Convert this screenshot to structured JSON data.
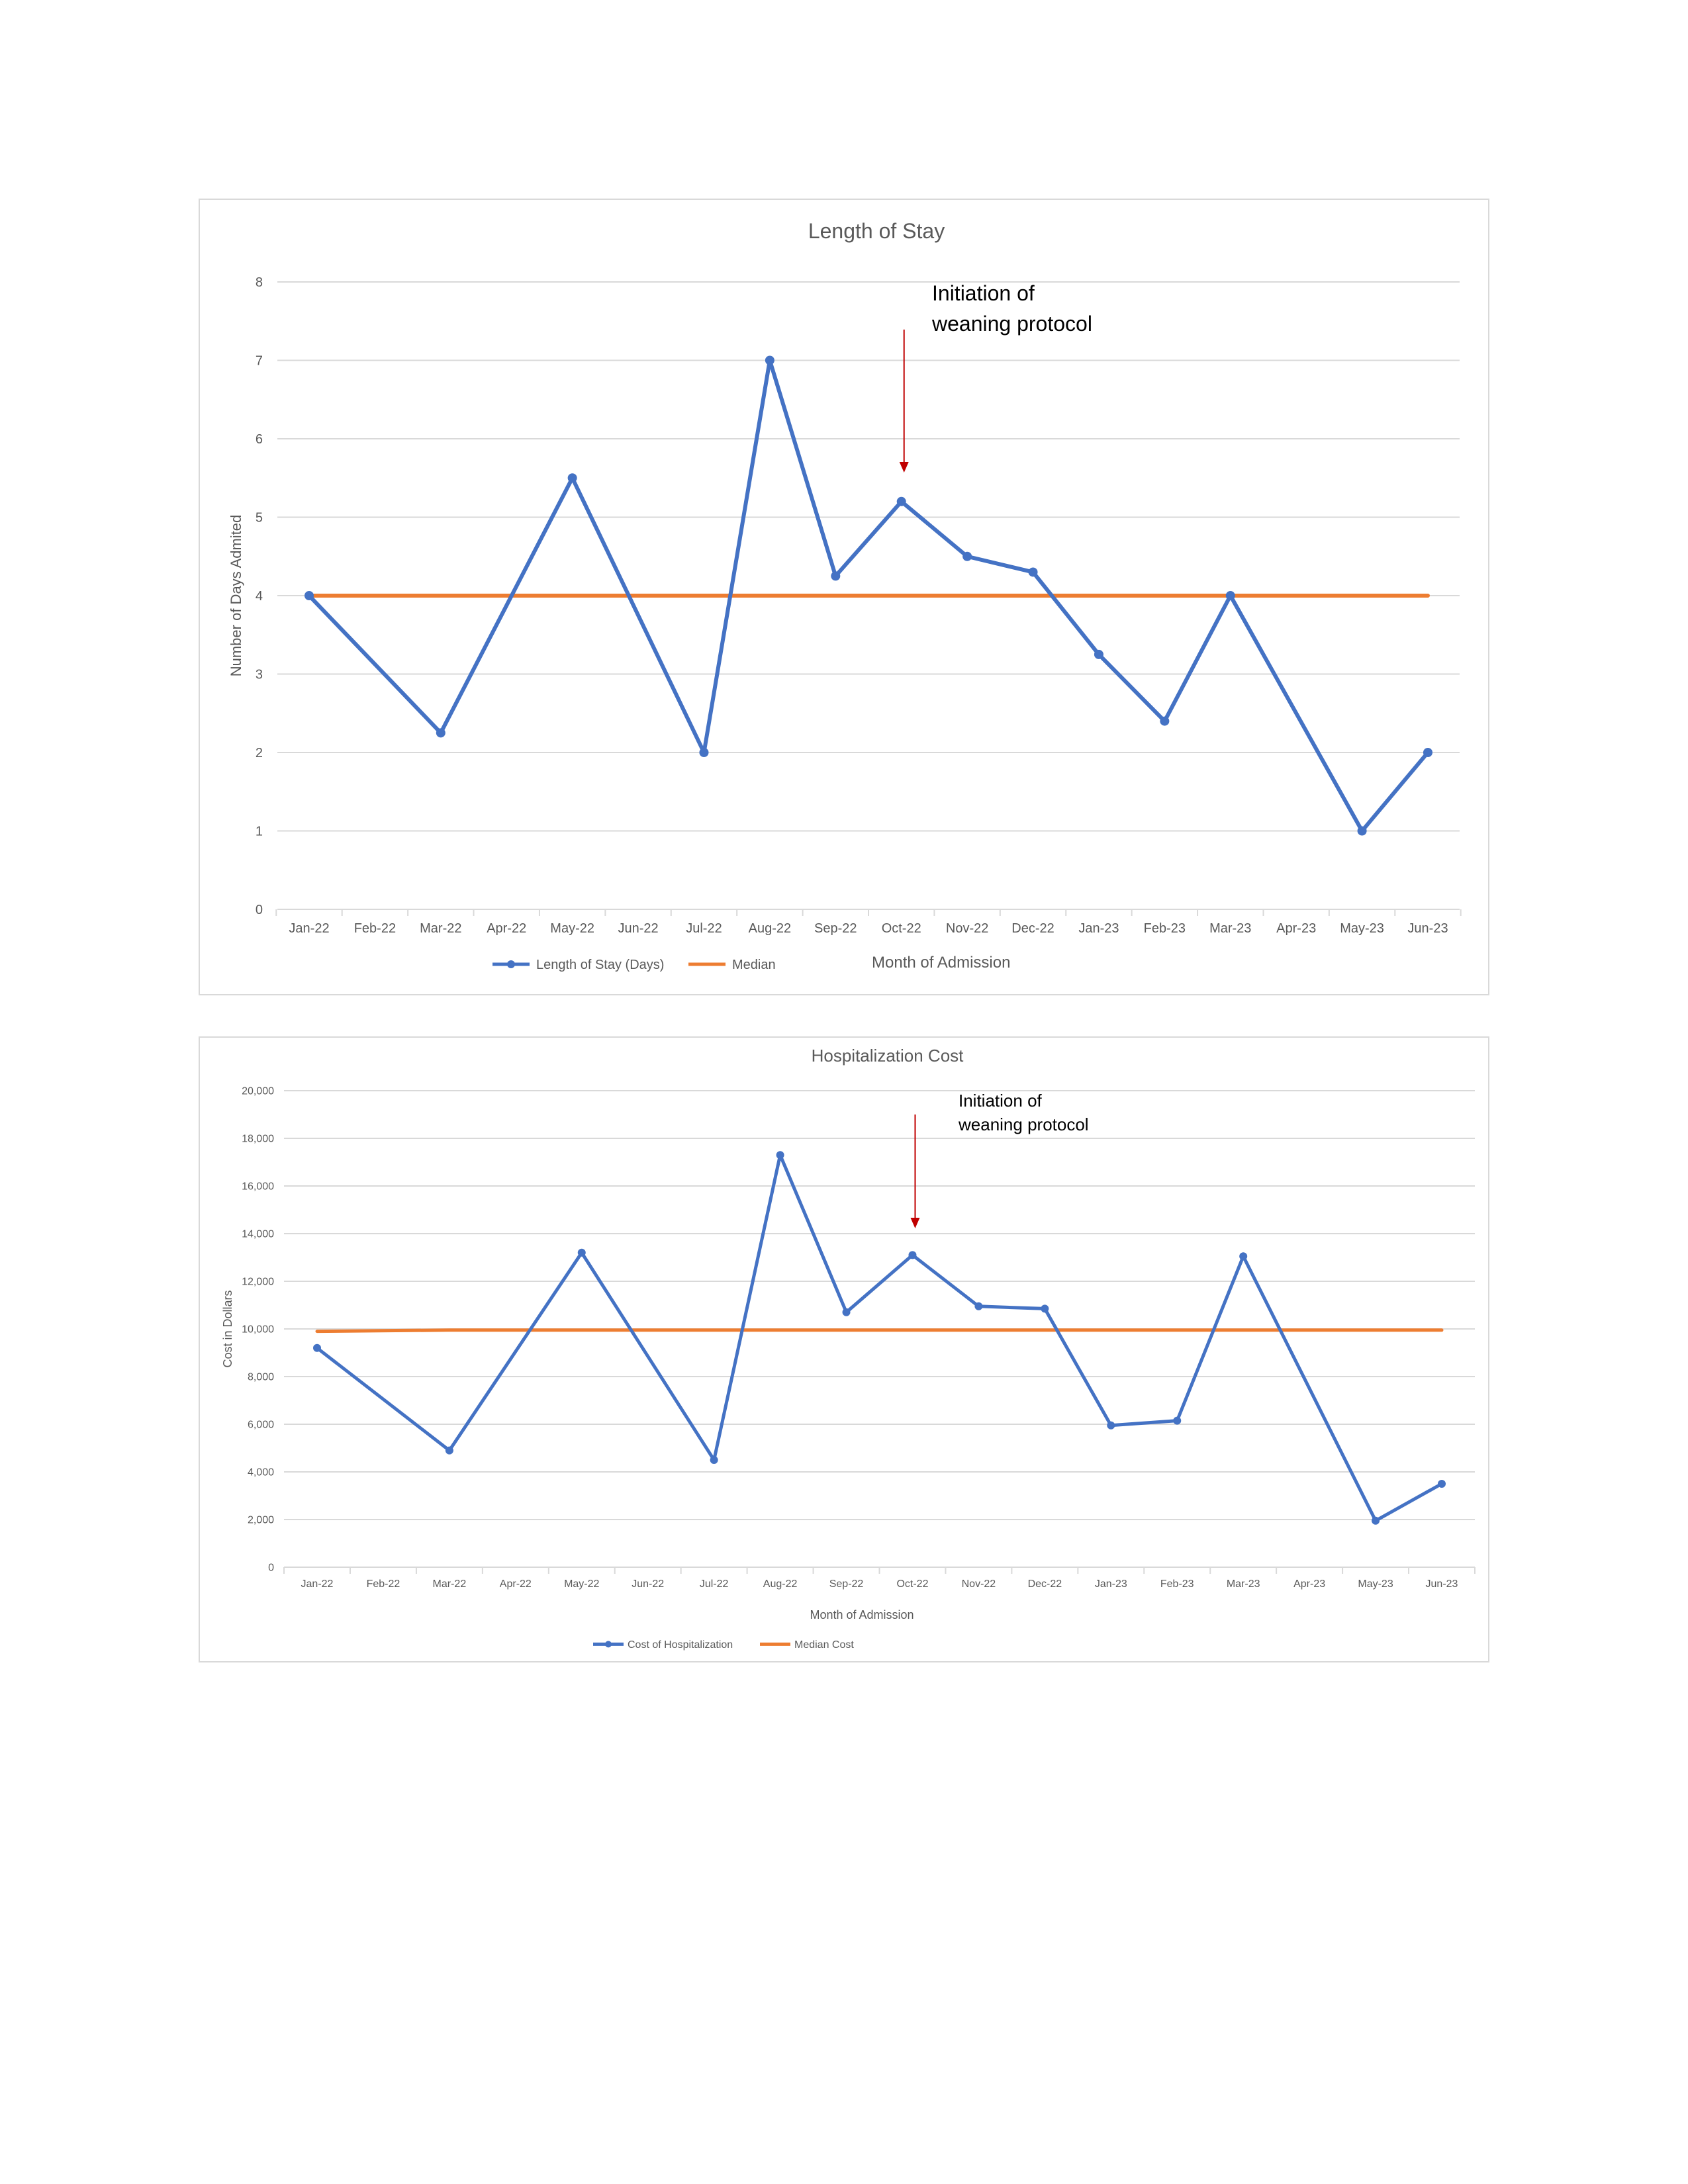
{
  "chart_data": [
    {
      "type": "line",
      "title": "Length of Stay",
      "xlabel": "Month of Admission",
      "ylabel": "Number of Days Admited",
      "ylim": [
        0,
        8
      ],
      "yticks": [
        "0",
        "1",
        "2",
        "3",
        "4",
        "5",
        "6",
        "7",
        "8"
      ],
      "categories": [
        "Jan-22",
        "Feb-22",
        "Mar-22",
        "Apr-22",
        "May-22",
        "Jun-22",
        "Jul-22",
        "Aug-22",
        "Sep-22",
        "Oct-22",
        "Nov-22",
        "Dec-22",
        "Jan-23",
        "Feb-23",
        "Mar-23",
        "Apr-23",
        "May-23",
        "Jun-23"
      ],
      "grid": true,
      "legend": "bottom",
      "series": [
        {
          "name": "Length of Stay (Days)",
          "color": "#4472C4",
          "markers": true,
          "points": [
            {
              "x": "Jan-22",
              "y": 4.0
            },
            {
              "x": "Mar-22",
              "y": 2.25
            },
            {
              "x": "May-22",
              "y": 5.5
            },
            {
              "x": "Jul-22",
              "y": 2.0
            },
            {
              "x": "Aug-22",
              "y": 7.0
            },
            {
              "x": "Sep-22",
              "y": 4.25
            },
            {
              "x": "Oct-22",
              "y": 5.2
            },
            {
              "x": "Nov-22",
              "y": 4.5
            },
            {
              "x": "Dec-22",
              "y": 4.3
            },
            {
              "x": "Jan-23",
              "y": 3.25
            },
            {
              "x": "Feb-23",
              "y": 2.4
            },
            {
              "x": "Mar-23",
              "y": 4.0
            },
            {
              "x": "May-23",
              "y": 1.0
            },
            {
              "x": "Jun-23",
              "y": 2.0
            }
          ]
        },
        {
          "name": "Median",
          "color": "#ED7D31",
          "markers": false,
          "points": [
            {
              "x": "Jan-22",
              "y": 4
            },
            {
              "x": "Jun-23",
              "y": 4
            }
          ]
        }
      ],
      "annotation": {
        "lines": [
          "Initiation of",
          "weaning protocol"
        ],
        "month": "Oct-22",
        "color": "#C00000"
      }
    },
    {
      "type": "line",
      "title": "Hospitalization Cost",
      "xlabel": "Month of Admission",
      "ylabel": "Cost in Dollars",
      "ylim": [
        0,
        20000
      ],
      "yticks": [
        "0",
        "2,000",
        "4,000",
        "6,000",
        "8,000",
        "10,000",
        "12,000",
        "14,000",
        "16,000",
        "18,000",
        "20,000"
      ],
      "categories": [
        "Jan-22",
        "Feb-22",
        "Mar-22",
        "Apr-22",
        "May-22",
        "Jun-22",
        "Jul-22",
        "Aug-22",
        "Sep-22",
        "Oct-22",
        "Nov-22",
        "Dec-22",
        "Jan-23",
        "Feb-23",
        "Mar-23",
        "Apr-23",
        "May-23",
        "Jun-23"
      ],
      "grid": true,
      "legend": "bottom",
      "series": [
        {
          "name": "Cost of Hospitalization",
          "color": "#4472C4",
          "markers": true,
          "points": [
            {
              "x": "Jan-22",
              "y": 9200
            },
            {
              "x": "Mar-22",
              "y": 4900
            },
            {
              "x": "May-22",
              "y": 13200
            },
            {
              "x": "Jul-22",
              "y": 4500
            },
            {
              "x": "Aug-22",
              "y": 17300
            },
            {
              "x": "Sep-22",
              "y": 10700
            },
            {
              "x": "Oct-22",
              "y": 13100
            },
            {
              "x": "Nov-22",
              "y": 10950
            },
            {
              "x": "Dec-22",
              "y": 10850
            },
            {
              "x": "Jan-23",
              "y": 5950
            },
            {
              "x": "Feb-23",
              "y": 6150
            },
            {
              "x": "Mar-23",
              "y": 13050
            },
            {
              "x": "May-23",
              "y": 1950
            },
            {
              "x": "Jun-23",
              "y": 3500
            }
          ]
        },
        {
          "name": "Median Cost",
          "color": "#ED7D31",
          "markers": false,
          "points": [
            {
              "x": "Jan-22",
              "y": 9900
            },
            {
              "x": "Mar-22",
              "y": 9950
            },
            {
              "x": "Jun-23",
              "y": 9950
            }
          ]
        }
      ],
      "annotation": {
        "lines": [
          "Initiation of",
          "weaning protocol"
        ],
        "month": "Oct-22",
        "color": "#C00000"
      }
    }
  ]
}
